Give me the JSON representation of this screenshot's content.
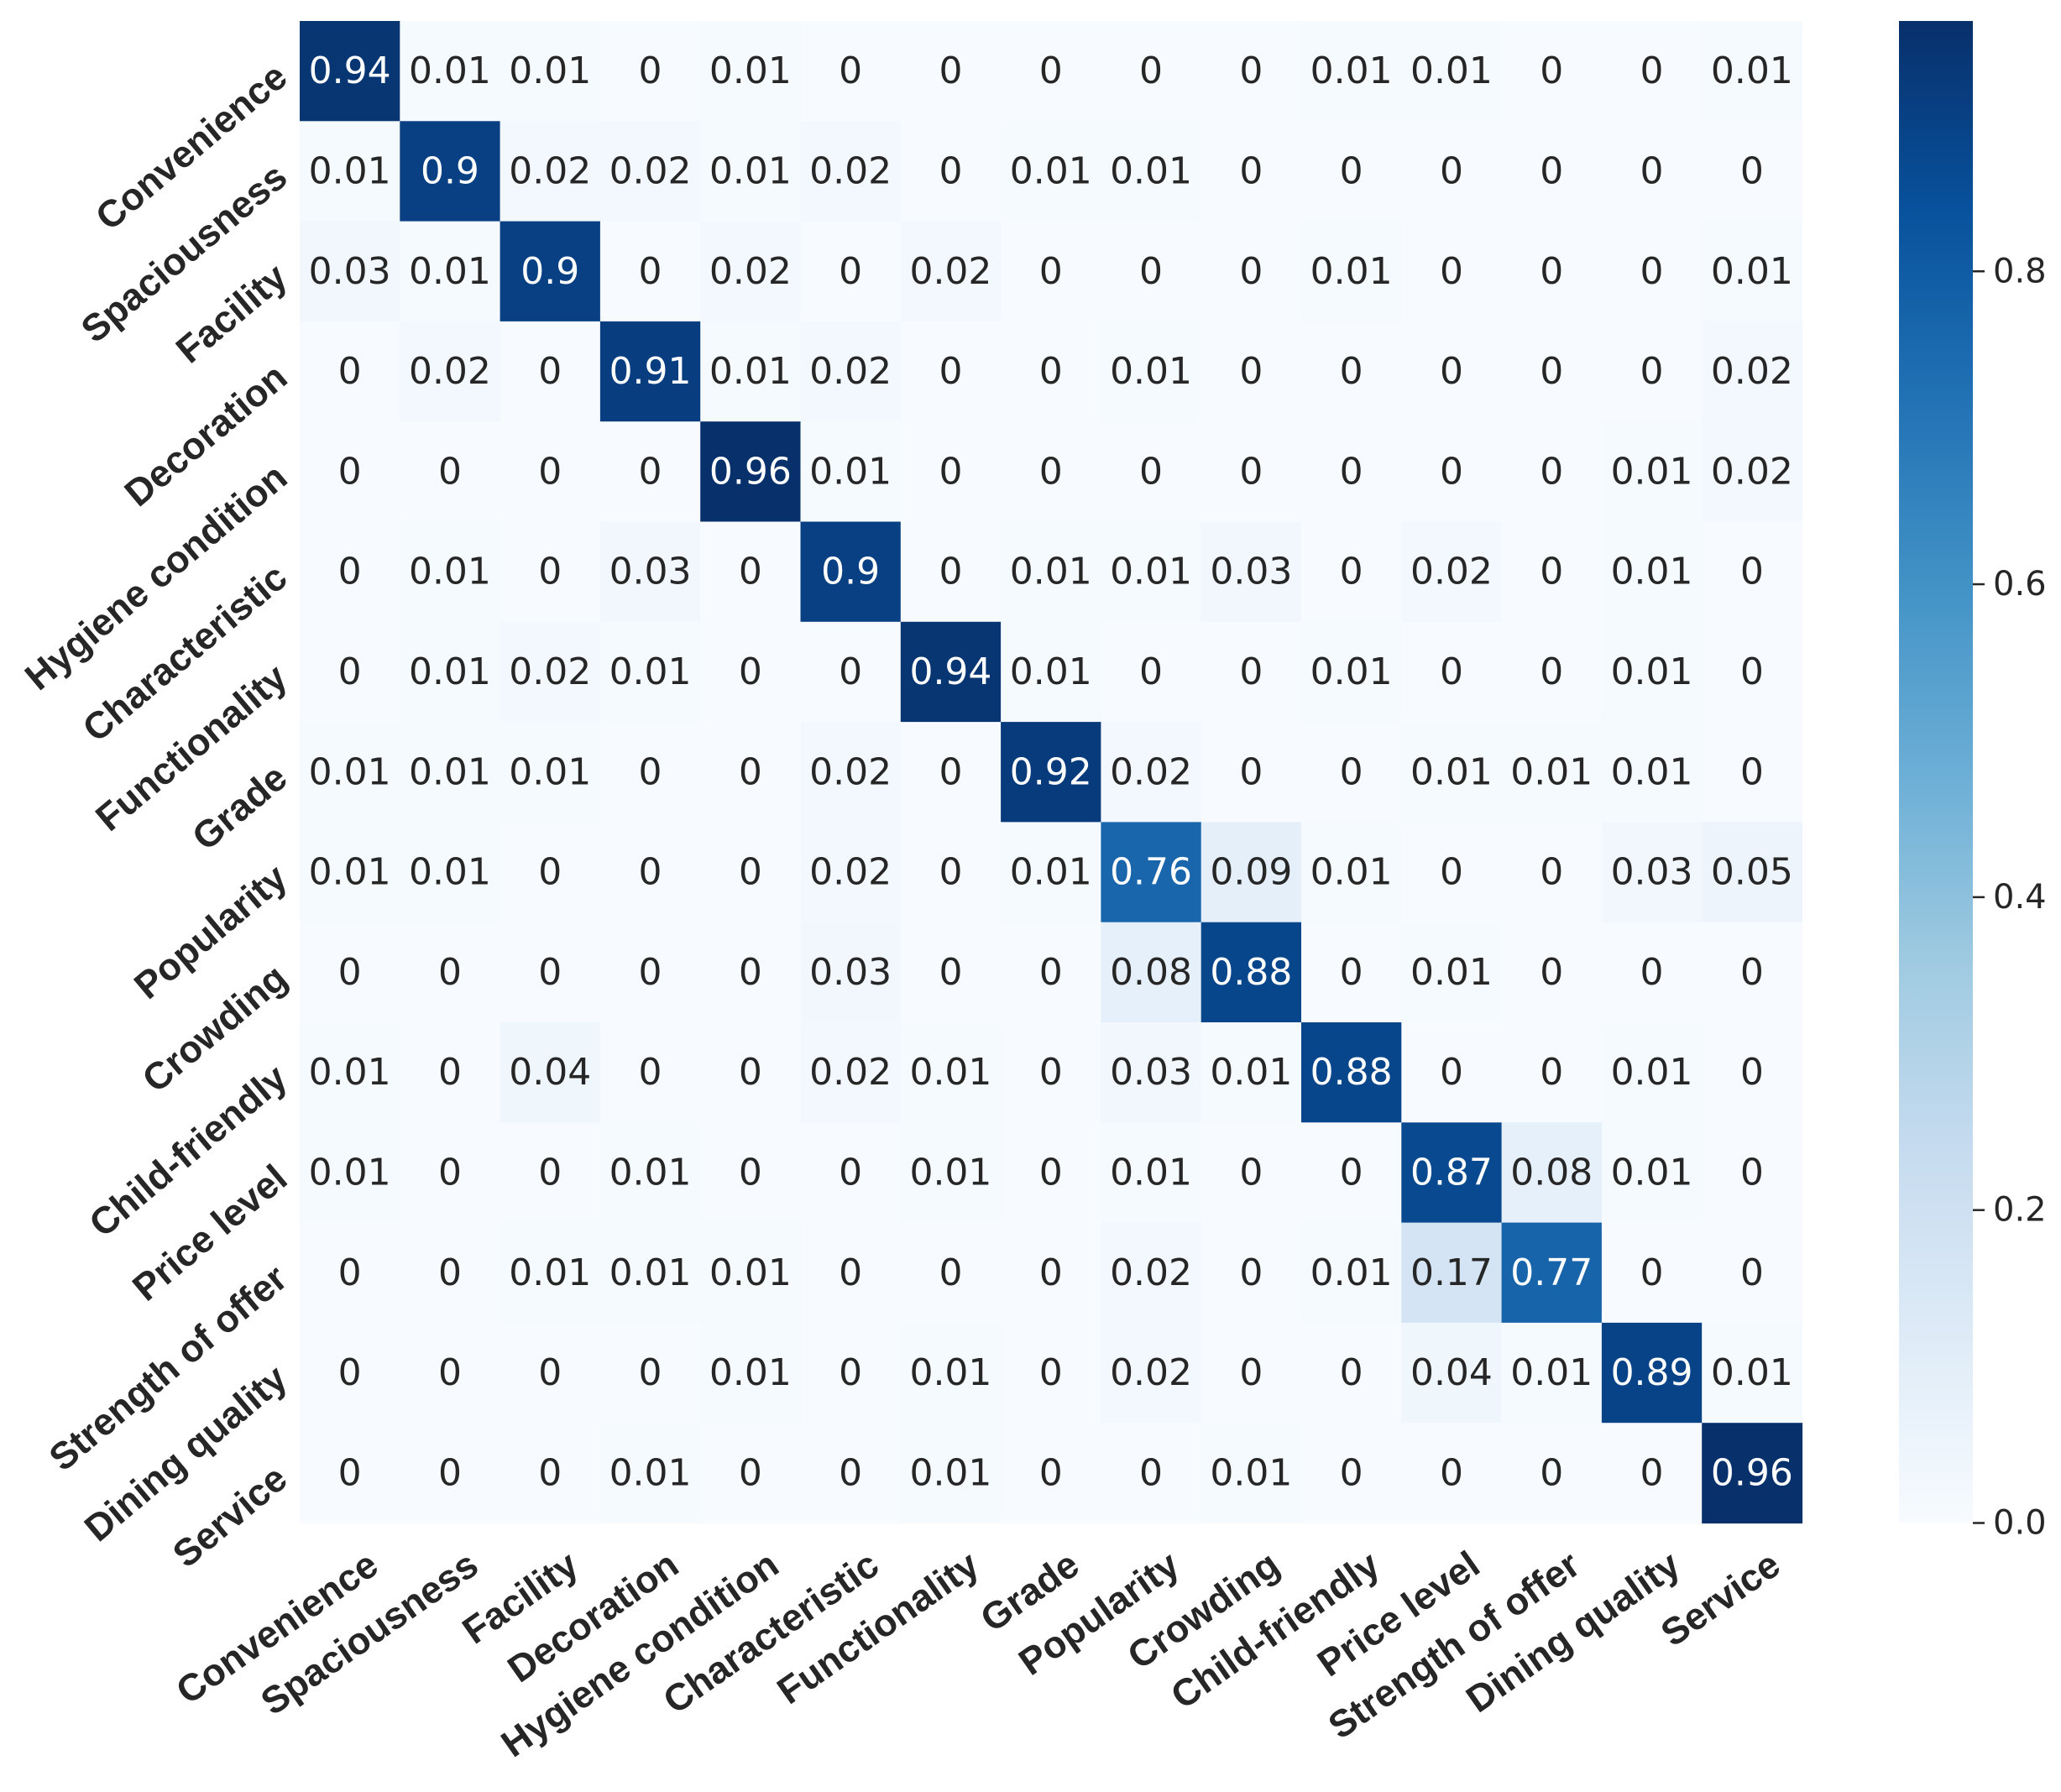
{
  "chart_data": {
    "type": "heatmap",
    "title": "",
    "xlabel": "",
    "ylabel": "",
    "row_labels": [
      "Convenience",
      "Spaciousness",
      "Facility",
      "Decoration",
      "Hygiene condition",
      "Characteristic",
      "Functionality",
      "Grade",
      "Popularity",
      "Crowding",
      "Child-friendly",
      "Price level",
      "Strength of offer",
      "Dining quality",
      "Service"
    ],
    "col_labels": [
      "Convenience",
      "Spaciousness",
      "Facility",
      "Decoration",
      "Hygiene condition",
      "Characteristic",
      "Functionality",
      "Grade",
      "Popularity",
      "Crowding",
      "Child-friendly",
      "Price level",
      "Strength of offer",
      "Dining quality",
      "Service"
    ],
    "values": [
      [
        0.94,
        0.01,
        0.01,
        0,
        0.01,
        0,
        0,
        0,
        0,
        0,
        0.01,
        0.01,
        0,
        0,
        0.01
      ],
      [
        0.01,
        0.9,
        0.02,
        0.02,
        0.01,
        0.02,
        0,
        0.01,
        0.01,
        0,
        0,
        0,
        0,
        0,
        0
      ],
      [
        0.03,
        0.01,
        0.9,
        0,
        0.02,
        0,
        0.02,
        0,
        0,
        0,
        0.01,
        0,
        0,
        0,
        0.01
      ],
      [
        0,
        0.02,
        0,
        0.91,
        0.01,
        0.02,
        0,
        0,
        0.01,
        0,
        0,
        0,
        0,
        0,
        0.02
      ],
      [
        0,
        0,
        0,
        0,
        0.96,
        0.01,
        0,
        0,
        0,
        0,
        0,
        0,
        0,
        0.01,
        0.02
      ],
      [
        0,
        0.01,
        0,
        0.03,
        0,
        0.9,
        0,
        0.01,
        0.01,
        0.03,
        0,
        0.02,
        0,
        0.01,
        0
      ],
      [
        0,
        0.01,
        0.02,
        0.01,
        0,
        0,
        0.94,
        0.01,
        0,
        0,
        0.01,
        0,
        0,
        0.01,
        0
      ],
      [
        0.01,
        0.01,
        0.01,
        0,
        0,
        0.02,
        0,
        0.92,
        0.02,
        0,
        0,
        0.01,
        0.01,
        0.01,
        0
      ],
      [
        0.01,
        0.01,
        0,
        0,
        0,
        0.02,
        0,
        0.01,
        0.76,
        0.09,
        0.01,
        0,
        0,
        0.03,
        0.05
      ],
      [
        0,
        0,
        0,
        0,
        0,
        0.03,
        0,
        0,
        0.08,
        0.88,
        0,
        0.01,
        0,
        0,
        0
      ],
      [
        0.01,
        0,
        0.04,
        0,
        0,
        0.02,
        0.01,
        0,
        0.03,
        0.01,
        0.88,
        0,
        0,
        0.01,
        0
      ],
      [
        0.01,
        0,
        0,
        0.01,
        0,
        0,
        0.01,
        0,
        0.01,
        0,
        0,
        0.87,
        0.08,
        0.01,
        0
      ],
      [
        0,
        0,
        0.01,
        0.01,
        0.01,
        0,
        0,
        0,
        0.02,
        0,
        0.01,
        0.17,
        0.77,
        0,
        0
      ],
      [
        0,
        0,
        0,
        0,
        0.01,
        0,
        0.01,
        0,
        0.02,
        0,
        0,
        0.04,
        0.01,
        0.89,
        0.01
      ],
      [
        0,
        0,
        0,
        0.01,
        0,
        0,
        0.01,
        0,
        0,
        0.01,
        0,
        0,
        0,
        0,
        0.96
      ]
    ],
    "colorbar": {
      "colormap": "Blues",
      "vmin": 0,
      "vmax": 0.96,
      "ticks": [
        0.0,
        0.2,
        0.4,
        0.6,
        0.8
      ],
      "tick_labels": [
        "0.0",
        "0.2",
        "0.4",
        "0.6",
        "0.8"
      ],
      "placement": "right"
    },
    "colors": {
      "low": "#f7fbff",
      "high": "#08306b",
      "text_dark": "#262626",
      "text_light": "#ffffff"
    },
    "grid": false,
    "legend": "none"
  }
}
